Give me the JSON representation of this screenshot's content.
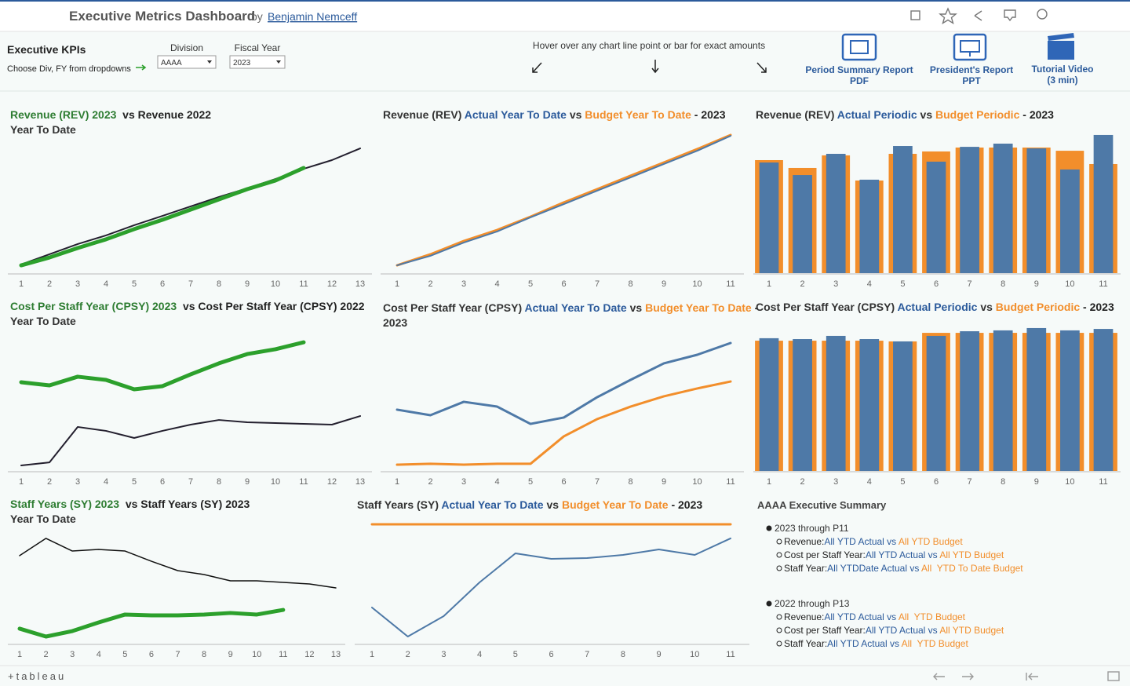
{
  "header": {
    "title": "Executive Metrics Dashboard",
    "by": "by",
    "author": "Benjamin Nemceff"
  },
  "controls": {
    "title": "Executive KPIs",
    "hint": "Choose Div, FY from dropdowns",
    "division_label": "Division",
    "division": "AAAA",
    "year_label": "Fiscal Year",
    "year": "2023",
    "hover_note": "Hover over any chart line point or bar for exact amounts"
  },
  "links": [
    {
      "line1": "Period Summary Report",
      "line2": "PDF"
    },
    {
      "line1": "President's Report",
      "line2": "PPT"
    },
    {
      "line1": "Tutorial Video",
      "line2": "(3 min)"
    }
  ],
  "chart_data": [
    {
      "type": "line",
      "title_parts": [
        {
          "text": "Revenue (REV) 2023 ",
          "color": "#2e7d32"
        },
        {
          "text": " vs ",
          "color": "#222"
        },
        {
          "text": "Revenue 2022",
          "color": "#222"
        }
      ],
      "subtitle": "Year To Date",
      "categories": [
        "1",
        "2",
        "3",
        "4",
        "5",
        "6",
        "7",
        "8",
        "9",
        "10",
        "11",
        "12",
        "13"
      ],
      "ylim": [
        0,
        100
      ],
      "series": [
        {
          "color": "#231f2e",
          "line_width": 2,
          "values": [
            6.2,
            13.5,
            20.8,
            27,
            34.3,
            41,
            47.8,
            54.5,
            60.7,
            67.4,
            74.7,
            80.9,
            89.3
          ]
        },
        {
          "color": "#2ca02c",
          "line_width": 5,
          "values": [
            5.6,
            11.2,
            18,
            24.2,
            31.5,
            38.2,
            45.5,
            52.8,
            60.1,
            66.3,
            75.3,
            null,
            null
          ]
        }
      ]
    },
    {
      "type": "line",
      "title_parts": [
        {
          "text": "Revenue (REV) ",
          "color": "#333"
        },
        {
          "text": "Actual Year To Date",
          "color": "#2b5a9b"
        },
        {
          "text": " vs ",
          "color": "#333"
        },
        {
          "text": "Budget Year To Date",
          "color": "#f28e2b"
        },
        {
          "text": " - 2023",
          "color": "#222"
        }
      ],
      "categories": [
        "1",
        "2",
        "3",
        "4",
        "5",
        "6",
        "7",
        "8",
        "9",
        "10",
        "11"
      ],
      "ylim": [
        0,
        100
      ],
      "series": [
        {
          "color": "#f28e2b",
          "line_width": 3,
          "values": [
            5.6,
            13.5,
            23,
            30.9,
            40.4,
            50.6,
            60.1,
            69.7,
            79.2,
            88.8,
            98.9
          ]
        },
        {
          "color": "#4e79a7",
          "line_width": 2,
          "values": [
            5.6,
            12.4,
            21.9,
            29.8,
            39.9,
            49.4,
            59,
            68.5,
            78.1,
            87.6,
            98.3
          ]
        }
      ]
    },
    {
      "type": "bar",
      "title_parts": [
        {
          "text": "Revenue (REV) ",
          "color": "#333"
        },
        {
          "text": "Actual Periodic",
          "color": "#2b5a9b"
        },
        {
          "text": " vs ",
          "color": "#333"
        },
        {
          "text": "Budget Periodic",
          "color": "#f28e2b"
        },
        {
          "text": " - 2023",
          "color": "#222"
        }
      ],
      "categories": [
        "1",
        "2",
        "3",
        "4",
        "5",
        "6",
        "7",
        "8",
        "9",
        "10",
        "11"
      ],
      "ylim": [
        0,
        100
      ],
      "series": [
        {
          "color": "#f28e2b",
          "values": [
            80.9,
            75.3,
            84.3,
            66.3,
            85.4,
            87.1,
            89.9,
            89.9,
            89.9,
            87.6,
            78.1
          ]
        },
        {
          "color": "#4e79a7",
          "values": [
            79.2,
            70.2,
            85.4,
            66.9,
            91,
            79.8,
            90.4,
            92.7,
            89.3,
            74.2,
            98.9
          ]
        }
      ]
    },
    {
      "type": "line",
      "title_parts": [
        {
          "text": "Cost Per Staff Year (CPSY) 2023 ",
          "color": "#2e7d32"
        },
        {
          "text": " vs Cost Per Staff Year (CPSY) 2022",
          "color": "#222"
        }
      ],
      "subtitle": "Year To Date",
      "categories": [
        "1",
        "2",
        "3",
        "4",
        "5",
        "6",
        "7",
        "8",
        "9",
        "10",
        "11",
        "12",
        "13"
      ],
      "ylim": [
        0,
        100
      ],
      "series": [
        {
          "color": "#231f2e",
          "line_width": 2,
          "values": [
            3.8,
            5.9,
            30.3,
            27.6,
            22.7,
            27.6,
            31.9,
            35.1,
            33.5,
            33,
            32.4,
            31.9,
            37.8
          ]
        },
        {
          "color": "#2ca02c",
          "line_width": 5,
          "values": [
            61.1,
            58.9,
            64.9,
            62.7,
            56.2,
            58.4,
            66.5,
            74.1,
            80.5,
            83.8,
            88.6,
            null,
            null
          ]
        }
      ]
    },
    {
      "type": "line",
      "title_parts": [
        {
          "text": "Cost Per Staff Year (CPSY) ",
          "color": "#333"
        },
        {
          "text": "Actual Year To Date",
          "color": "#2b5a9b"
        },
        {
          "text": " vs ",
          "color": "#333"
        },
        {
          "text": "Budget Year To Date",
          "color": "#f28e2b"
        },
        {
          "text": " -",
          "color": "#222"
        }
      ],
      "subtitle": "2023",
      "categories": [
        "1",
        "2",
        "3",
        "4",
        "5",
        "6",
        "7",
        "8",
        "9",
        "10",
        "11"
      ],
      "ylim": [
        0,
        100
      ],
      "series": [
        {
          "color": "#4e79a7",
          "line_width": 3,
          "values": [
            42.2,
            38.4,
            47.6,
            44.3,
            32.4,
            36.8,
            50.8,
            62.7,
            74.1,
            80,
            88.1
          ]
        },
        {
          "color": "#f28e2b",
          "line_width": 3,
          "values": [
            4.3,
            4.9,
            4.3,
            4.9,
            4.9,
            23.8,
            35.7,
            44.3,
            51.4,
            56.8,
            61.6
          ]
        }
      ]
    },
    {
      "type": "bar",
      "title_parts": [
        {
          "text": "Cost Per Staff Year (CPSY) ",
          "color": "#333"
        },
        {
          "text": "Actual Periodic",
          "color": "#2b5a9b"
        },
        {
          "text": " vs ",
          "color": "#333"
        },
        {
          "text": "Budget Periodic",
          "color": "#f28e2b"
        },
        {
          "text": " - 2023",
          "color": "#222"
        }
      ],
      "categories": [
        "1",
        "2",
        "3",
        "4",
        "5",
        "6",
        "7",
        "8",
        "9",
        "10",
        "11"
      ],
      "ylim": [
        0,
        100
      ],
      "series": [
        {
          "color": "#f28e2b",
          "values": [
            89.7,
            89.7,
            89.7,
            89.7,
            89.2,
            95.1,
            95.1,
            95.1,
            95.1,
            95.1,
            95.1
          ]
        },
        {
          "color": "#4e79a7",
          "values": [
            91.4,
            90.8,
            93,
            90.8,
            89.2,
            93,
            96.2,
            96.8,
            98.4,
            96.8,
            97.8
          ]
        }
      ]
    },
    {
      "type": "line",
      "title_parts": [
        {
          "text": "Staff Years (SY) 2023 ",
          "color": "#2e7d32"
        },
        {
          "text": " vs Staff Years (SY) 2023",
          "color": "#222"
        }
      ],
      "subtitle": "Year To Date",
      "categories": [
        "1",
        "2",
        "3",
        "4",
        "5",
        "6",
        "7",
        "8",
        "9",
        "10",
        "11",
        "12",
        "13"
      ],
      "ylim": [
        0,
        100
      ],
      "series": [
        {
          "color": "#111",
          "line_width": 1.5,
          "values": [
            72.3,
            86.5,
            76.1,
            77.4,
            76.1,
            67.7,
            60,
            56.8,
            51.6,
            51.6,
            50.3,
            49,
            45.8
          ]
        },
        {
          "color": "#2ca02c",
          "line_width": 5,
          "values": [
            12.3,
            5.8,
            10.3,
            17.4,
            23.9,
            23.2,
            23.2,
            23.9,
            25.2,
            23.9,
            27.7,
            null,
            null
          ]
        }
      ]
    },
    {
      "type": "line",
      "title_parts": [
        {
          "text": "Staff Years (SY) ",
          "color": "#333"
        },
        {
          "text": "Actual Year To Date",
          "color": "#2b5a9b"
        },
        {
          "text": " vs ",
          "color": "#333"
        },
        {
          "text": "Budget Year To Date",
          "color": "#f28e2b"
        },
        {
          "text": " - 2023",
          "color": "#222"
        }
      ],
      "categories": [
        "1",
        "2",
        "3",
        "4",
        "5",
        "6",
        "7",
        "8",
        "9",
        "10",
        "11"
      ],
      "ylim": [
        0,
        100
      ],
      "series": [
        {
          "color": "#f28e2b",
          "line_width": 3,
          "values": [
            98.1,
            98.1,
            98.1,
            98.1,
            98.1,
            98.1,
            98.1,
            98.1,
            98.1,
            98.1,
            98.1
          ]
        },
        {
          "color": "#4e79a7",
          "line_width": 2,
          "values": [
            29.7,
            5.8,
            22.6,
            50.3,
            74.2,
            69.7,
            70.3,
            72.9,
            77.4,
            72.9,
            86.5
          ]
        }
      ]
    }
  ],
  "summary": {
    "title": "AAAA Executive Summary",
    "sections": [
      {
        "heading": "2023 through P11",
        "rows": [
          {
            "label": "Revenue:",
            "parts": [
              {
                "text": "All YTD Actual vs ",
                "color": "#2b5a9b"
              },
              {
                "text": "All YTD Budget",
                "color": "#f28e2b"
              }
            ]
          },
          {
            "label": "Cost per Staff Year:",
            "parts": [
              {
                "text": "All YTD Actual vs ",
                "color": "#2b5a9b"
              },
              {
                "text": "All YTD Budget",
                "color": "#f28e2b"
              }
            ]
          },
          {
            "label": "Staff Year:",
            "parts": [
              {
                "text": "All YTDDate Actual vs ",
                "color": "#2b5a9b"
              },
              {
                "text": "All  YTD To Date Budget",
                "color": "#f28e2b"
              }
            ]
          }
        ]
      },
      {
        "heading": "2022 through P13",
        "rows": [
          {
            "label": "Revenue:",
            "parts": [
              {
                "text": "All YTD Actual vs ",
                "color": "#2b5a9b"
              },
              {
                "text": "All  YTD Budget",
                "color": "#f28e2b"
              }
            ]
          },
          {
            "label": "Cost per Staff Year:",
            "parts": [
              {
                "text": "All YTD Actual vs ",
                "color": "#2b5a9b"
              },
              {
                "text": "All YTD Budget",
                "color": "#f28e2b"
              }
            ]
          },
          {
            "label": "Staff Year:",
            "parts": [
              {
                "text": "All YTD Actual vs ",
                "color": "#2b5a9b"
              },
              {
                "text": "All  YTD Budget",
                "color": "#f28e2b"
              }
            ]
          }
        ]
      }
    ]
  },
  "footer": {
    "brand": "+tableau"
  }
}
